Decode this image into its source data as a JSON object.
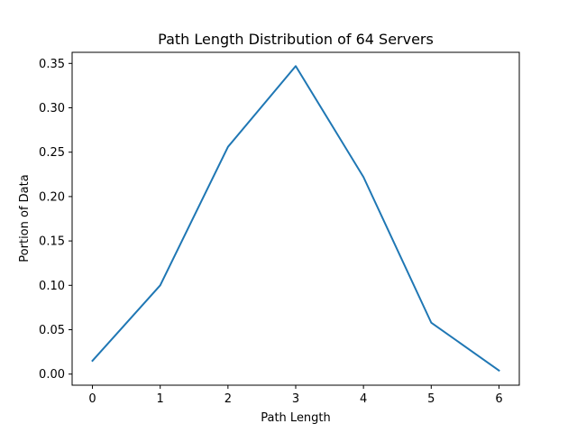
{
  "chart_data": {
    "type": "line",
    "title": "Path Length Distribution of 64 Servers",
    "xlabel": "Path Length",
    "ylabel": "Portion of Data",
    "x": [
      0,
      1,
      2,
      3,
      4,
      5,
      6
    ],
    "series": [
      {
        "values": [
          0.015,
          0.1,
          0.256,
          0.347,
          0.222,
          0.058,
          0.004
        ],
        "color": "#1f77b4"
      }
    ],
    "xlim": [
      -0.3,
      6.3
    ],
    "ylim": [
      -0.0125,
      0.3625
    ],
    "xticks": [
      0,
      1,
      2,
      3,
      4,
      5,
      6
    ],
    "xtick_labels": [
      "0",
      "1",
      "2",
      "3",
      "4",
      "5",
      "6"
    ],
    "yticks": [
      0.0,
      0.05,
      0.1,
      0.15,
      0.2,
      0.25,
      0.3,
      0.35
    ],
    "ytick_labels": [
      "0.00",
      "0.05",
      "0.10",
      "0.15",
      "0.20",
      "0.25",
      "0.30",
      "0.35"
    ],
    "grid": false,
    "legend": "none"
  }
}
